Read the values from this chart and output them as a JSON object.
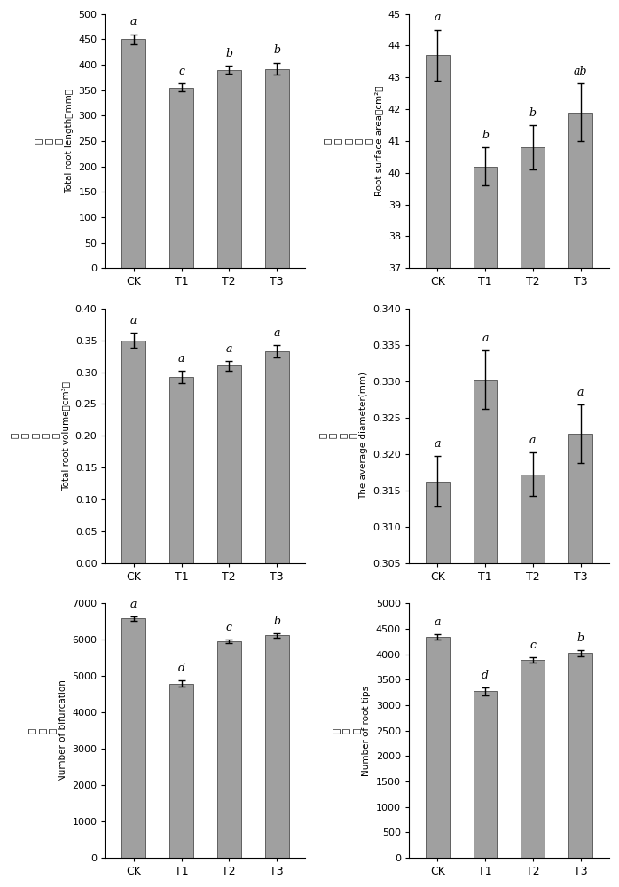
{
  "subplots": [
    {
      "ylabel_cn": "总根长",
      "ylabel_en": "Total root length（mm）",
      "categories": [
        "CK",
        "T1",
        "T2",
        "T3"
      ],
      "values": [
        450,
        355,
        390,
        392
      ],
      "errors": [
        10,
        8,
        8,
        12
      ],
      "letters": [
        "a",
        "c",
        "b",
        "b"
      ],
      "ylim": [
        0,
        500
      ],
      "yticks": [
        0,
        50,
        100,
        150,
        200,
        250,
        300,
        350,
        400,
        450,
        500
      ]
    },
    {
      "ylabel_cn": "根系表面积",
      "ylabel_en": "Root surface area（cm²）",
      "categories": [
        "CK",
        "T1",
        "T2",
        "T3"
      ],
      "values": [
        43.7,
        40.2,
        40.8,
        41.9
      ],
      "errors": [
        0.8,
        0.6,
        0.7,
        0.9
      ],
      "letters": [
        "a",
        "b",
        "b",
        "ab"
      ],
      "ylim": [
        37,
        45
      ],
      "yticks": [
        37,
        38,
        39,
        40,
        41,
        42,
        43,
        44,
        45
      ]
    },
    {
      "ylabel_cn": "根系总体积",
      "ylabel_en": "Total root volume（cm³）",
      "categories": [
        "CK",
        "T1",
        "T2",
        "T3"
      ],
      "values": [
        0.35,
        0.292,
        0.31,
        0.333
      ],
      "errors": [
        0.012,
        0.01,
        0.008,
        0.01
      ],
      "letters": [
        "a",
        "a",
        "a",
        "a"
      ],
      "ylim": [
        0,
        0.4
      ],
      "yticks": [
        0,
        0.05,
        0.1,
        0.15,
        0.2,
        0.25,
        0.3,
        0.35,
        0.4
      ]
    },
    {
      "ylabel_cn": "平均直径",
      "ylabel_en": "The average diameter(mm)",
      "categories": [
        "CK",
        "T1",
        "T2",
        "T3"
      ],
      "values": [
        0.3162,
        0.3302,
        0.3172,
        0.3228
      ],
      "errors": [
        0.0035,
        0.004,
        0.003,
        0.004
      ],
      "letters": [
        "a",
        "a",
        "a",
        "a"
      ],
      "ylim": [
        0.305,
        0.34
      ],
      "yticks": [
        0.305,
        0.31,
        0.315,
        0.32,
        0.325,
        0.33,
        0.335,
        0.34
      ]
    },
    {
      "ylabel_cn": "分叉数",
      "ylabel_en": "Number of bifurcation",
      "categories": [
        "CK",
        "T1",
        "T2",
        "T3"
      ],
      "values": [
        6580,
        4790,
        5960,
        6120
      ],
      "errors": [
        60,
        80,
        50,
        55
      ],
      "letters": [
        "a",
        "d",
        "c",
        "b"
      ],
      "ylim": [
        0,
        7000
      ],
      "yticks": [
        0,
        1000,
        2000,
        3000,
        4000,
        5000,
        6000,
        7000
      ]
    },
    {
      "ylabel_cn": "根尖数",
      "ylabel_en": "Number of root tips",
      "categories": [
        "CK",
        "T1",
        "T2",
        "T3"
      ],
      "values": [
        4340,
        3270,
        3890,
        4020
      ],
      "errors": [
        55,
        80,
        50,
        60
      ],
      "letters": [
        "a",
        "d",
        "c",
        "b"
      ],
      "ylim": [
        0,
        5000
      ],
      "yticks": [
        0,
        500,
        1000,
        1500,
        2000,
        2500,
        3000,
        3500,
        4000,
        4500,
        5000
      ]
    }
  ],
  "bar_color": "#a0a0a0",
  "bar_edgecolor": "#606060",
  "error_color": "black",
  "background_color": "#ffffff",
  "bar_width": 0.5
}
